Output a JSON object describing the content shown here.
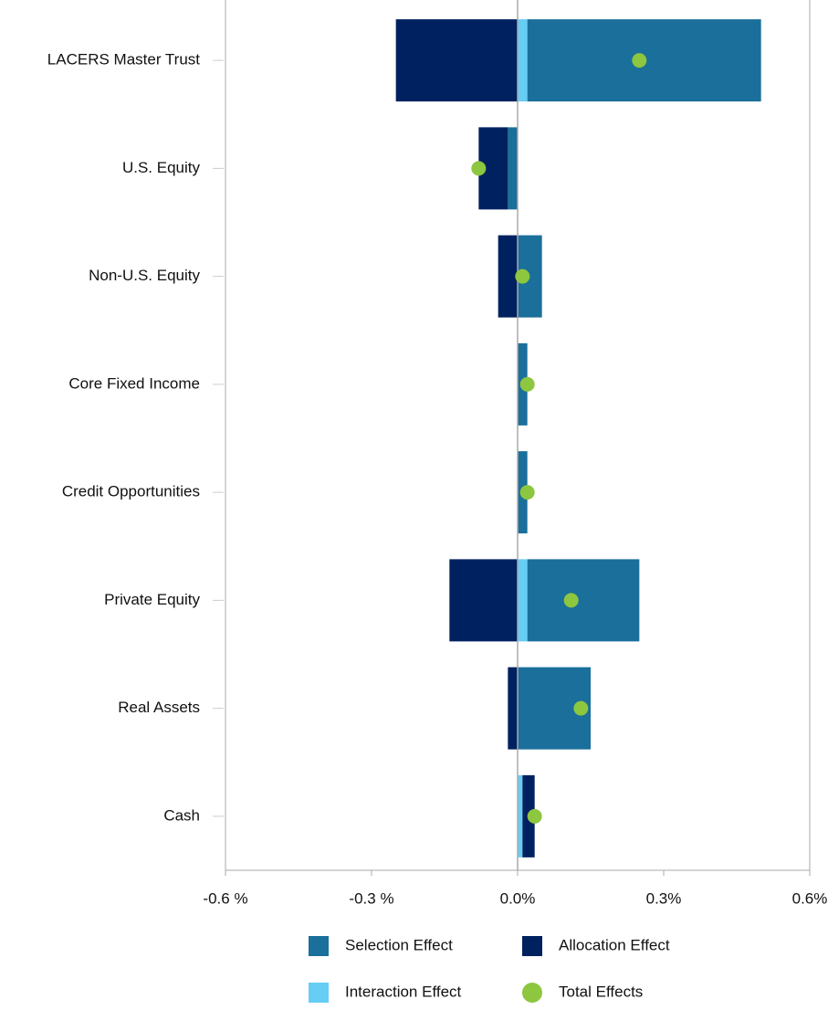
{
  "chart_data": {
    "type": "bar",
    "categories": [
      "LACERS Master Trust",
      "U.S. Equity",
      "Non-U.S. Equity",
      "Core Fixed Income",
      "Credit Opportunities",
      "Private Equity",
      "Real Assets",
      "Cash"
    ],
    "series": [
      {
        "name": "Selection Effect",
        "color": "#1a6f9b",
        "values": [
          0.48,
          -0.02,
          0.05,
          0.02,
          0.02,
          0.23,
          0.15,
          0
        ]
      },
      {
        "name": "Allocation Effect",
        "color": "#00215f",
        "values": [
          -0.25,
          -0.06,
          -0.04,
          0,
          0,
          -0.14,
          -0.02,
          0.025
        ]
      },
      {
        "name": "Interaction Effect",
        "color": "#66cdf4",
        "values": [
          0.02,
          0,
          0,
          0,
          0,
          0.02,
          0,
          0.01
        ]
      },
      {
        "name": "Total Effects",
        "color": "#8dc63f",
        "values": [
          0.25,
          -0.08,
          0.01,
          0.02,
          0.02,
          0.11,
          0.13,
          0.035
        ]
      }
    ],
    "xlim": [
      -0.6,
      0.6
    ],
    "xticks": [
      {
        "value": -0.6,
        "label": "-0.6 %"
      },
      {
        "value": -0.3,
        "label": "-0.3 %"
      },
      {
        "value": 0,
        "label": "0.0%"
      },
      {
        "value": 0.3,
        "label": "0.3%"
      },
      {
        "value": 0.6,
        "label": "0.6%"
      }
    ]
  }
}
